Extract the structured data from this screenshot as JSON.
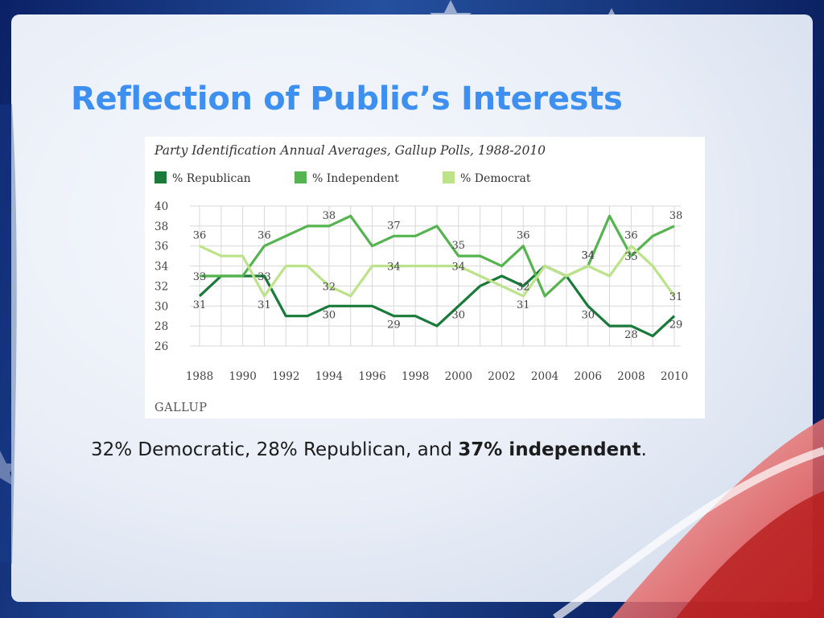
{
  "slide": {
    "title": "Reflection of Public’s Interests",
    "caption": {
      "part1": "32% Democratic, 28% Republican, and ",
      "bold": "37% independent",
      "part2": "."
    },
    "source_logo": "GALLUP"
  },
  "colors": {
    "republican": "#1a7a3a",
    "independent": "#55b450",
    "democrat": "#bde38a",
    "title": "#3d8ff0",
    "grid": "#d8d8d8"
  },
  "chart_data": {
    "type": "line",
    "title": "Party Identification Annual Averages, Gallup Polls, 1988-2010",
    "xlabel": "",
    "ylabel": "",
    "x": [
      1988,
      1989,
      1990,
      1991,
      1992,
      1993,
      1994,
      1995,
      1996,
      1997,
      1998,
      1999,
      2000,
      2001,
      2002,
      2003,
      2004,
      2005,
      2006,
      2007,
      2008,
      2009,
      2010
    ],
    "xticks": [
      "1988",
      "1990",
      "1992",
      "1994",
      "1996",
      "1998",
      "2000",
      "2002",
      "2004",
      "2006",
      "2008",
      "2010"
    ],
    "yticks": [
      "40",
      "38",
      "36",
      "34",
      "32",
      "30",
      "28",
      "26"
    ],
    "ylim": [
      26,
      40
    ],
    "grid": true,
    "legend_position": "top",
    "series": [
      {
        "name": "% Republican",
        "color": "#1a7a3a",
        "values": [
          31,
          33,
          33,
          33,
          29,
          29,
          30,
          30,
          30,
          29,
          29,
          28,
          30,
          32,
          33,
          32,
          34,
          33,
          30,
          28,
          28,
          27,
          29
        ]
      },
      {
        "name": "% Independent",
        "color": "#55b450",
        "values": [
          33,
          33,
          33,
          36,
          37,
          38,
          38,
          39,
          36,
          37,
          37,
          38,
          35,
          35,
          34,
          36,
          31,
          33,
          34,
          39,
          35,
          37,
          38
        ]
      },
      {
        "name": "% Democrat",
        "color": "#bde38a",
        "values": [
          36,
          35,
          35,
          31,
          34,
          34,
          32,
          31,
          34,
          34,
          34,
          34,
          34,
          33,
          32,
          31,
          34,
          33,
          34,
          33,
          36,
          34,
          31
        ]
      }
    ],
    "annotations": [
      {
        "text": "36",
        "x": 1988,
        "series": "% Democrat"
      },
      {
        "text": "33",
        "x": 1988,
        "series": "% Independent"
      },
      {
        "text": "31",
        "x": 1988,
        "series": "% Republican"
      },
      {
        "text": "36",
        "x": 1991,
        "series": "% Independent"
      },
      {
        "text": "33",
        "x": 1991,
        "series": "% Republican"
      },
      {
        "text": "31",
        "x": 1991,
        "series": "% Democrat"
      },
      {
        "text": "38",
        "x": 1994,
        "series": "% Independent"
      },
      {
        "text": "32",
        "x": 1994,
        "series": "% Democrat"
      },
      {
        "text": "30",
        "x": 1994,
        "series": "% Republican"
      },
      {
        "text": "37",
        "x": 1997,
        "series": "% Independent"
      },
      {
        "text": "34",
        "x": 1997,
        "series": "% Democrat"
      },
      {
        "text": "29",
        "x": 1997,
        "series": "% Republican"
      },
      {
        "text": "35",
        "x": 2000,
        "series": "% Independent"
      },
      {
        "text": "34",
        "x": 2000,
        "series": "% Democrat"
      },
      {
        "text": "30",
        "x": 2000,
        "series": "% Republican"
      },
      {
        "text": "36",
        "x": 2003,
        "series": "% Independent"
      },
      {
        "text": "32",
        "x": 2003,
        "series": "% Republican"
      },
      {
        "text": "31",
        "x": 2003,
        "series": "% Democrat"
      },
      {
        "text": "34",
        "x": 2006,
        "series": "% Independent"
      },
      {
        "text": "34",
        "x": 2006,
        "series": "% Democrat"
      },
      {
        "text": "30",
        "x": 2006,
        "series": "% Republican"
      },
      {
        "text": "36",
        "x": 2008,
        "series": "% Democrat"
      },
      {
        "text": "35",
        "x": 2008,
        "series": "% Independent"
      },
      {
        "text": "28",
        "x": 2008,
        "series": "% Republican"
      },
      {
        "text": "38",
        "x": 2010,
        "series": "% Independent"
      },
      {
        "text": "31",
        "x": 2010,
        "series": "% Democrat"
      },
      {
        "text": "29",
        "x": 2010,
        "series": "% Republican"
      }
    ]
  }
}
